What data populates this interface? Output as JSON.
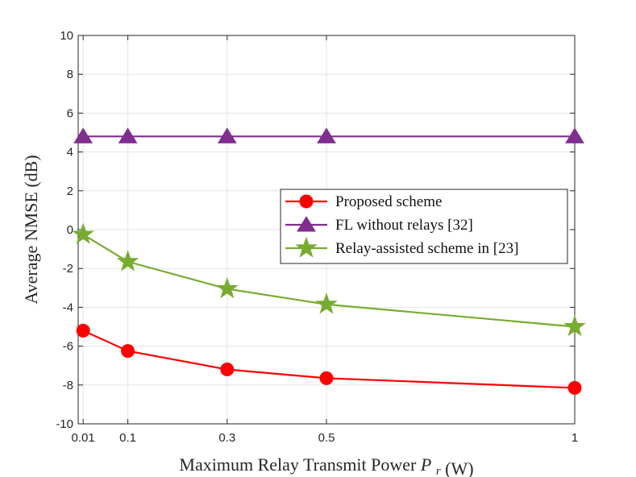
{
  "chart_data": {
    "type": "line",
    "title": "",
    "xlabel": "Maximum Relay Transmit Power",
    "xlabel_symbol": "P",
    "xlabel_subscript": "r",
    "xlabel_unit": "(W)",
    "ylabel": "Average NMSE (dB)",
    "x": [
      0.01,
      0.1,
      0.3,
      0.5,
      1
    ],
    "xlim": [
      0,
      1
    ],
    "ylim": [
      -10,
      10
    ],
    "xticks": [
      0.01,
      0.1,
      0.3,
      0.5,
      1
    ],
    "xtick_labels": [
      "0.01",
      "0.1",
      "0.3",
      "0.5",
      "1"
    ],
    "yticks": [
      -10,
      -8,
      -6,
      -4,
      -2,
      0,
      2,
      4,
      6,
      8,
      10
    ],
    "ytick_labels": [
      "-10",
      "-8",
      "-6",
      "-4",
      "-2",
      "0",
      "2",
      "4",
      "6",
      "8",
      "10"
    ],
    "grid": true,
    "legend_position": "center-right",
    "series": [
      {
        "name": "Proposed scheme",
        "marker": "circle",
        "color": "#ff0000",
        "values": [
          -5.2,
          -6.25,
          -7.2,
          -7.65,
          -8.15
        ]
      },
      {
        "name": "FL without relays [32]",
        "marker": "triangle",
        "color": "#7e2f8e",
        "values": [
          4.8,
          4.8,
          4.8,
          4.8,
          4.8
        ]
      },
      {
        "name": "Relay-assisted scheme in [23]",
        "marker": "star",
        "color": "#77ac30",
        "values": [
          -0.25,
          -1.65,
          -3.05,
          -3.85,
          -5.0
        ]
      }
    ]
  }
}
